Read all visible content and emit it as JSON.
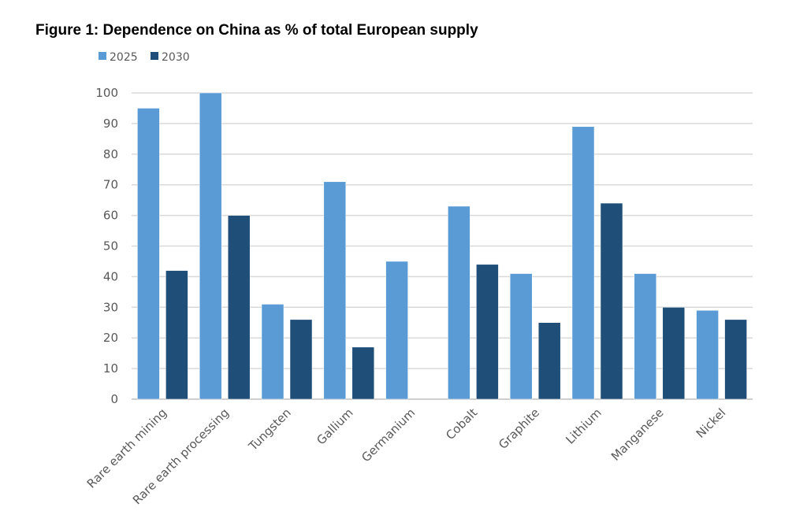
{
  "chart_data": {
    "type": "bar",
    "title": "Figure 1: Dependence on China as % of total European supply",
    "xlabel": "",
    "ylabel": "",
    "ylim": [
      0,
      100
    ],
    "yticks": [
      0,
      10,
      20,
      30,
      40,
      50,
      60,
      70,
      80,
      90,
      100
    ],
    "grid": true,
    "legend_position": "top-left",
    "categories": [
      "Rare earth mining",
      "Rare earth processing",
      "Tungsten",
      "Gallium",
      "Germanium",
      "Cobalt",
      "Graphite",
      "Lithium",
      "Manganese",
      "Nickel"
    ],
    "series": [
      {
        "name": "2025",
        "color": "#5b9bd5",
        "values": [
          95,
          100,
          31,
          71,
          45,
          63,
          41,
          89,
          41,
          29
        ]
      },
      {
        "name": "2030",
        "color": "#1f4e79",
        "values": [
          42,
          60,
          26,
          17,
          null,
          44,
          25,
          64,
          30,
          26
        ]
      }
    ]
  }
}
